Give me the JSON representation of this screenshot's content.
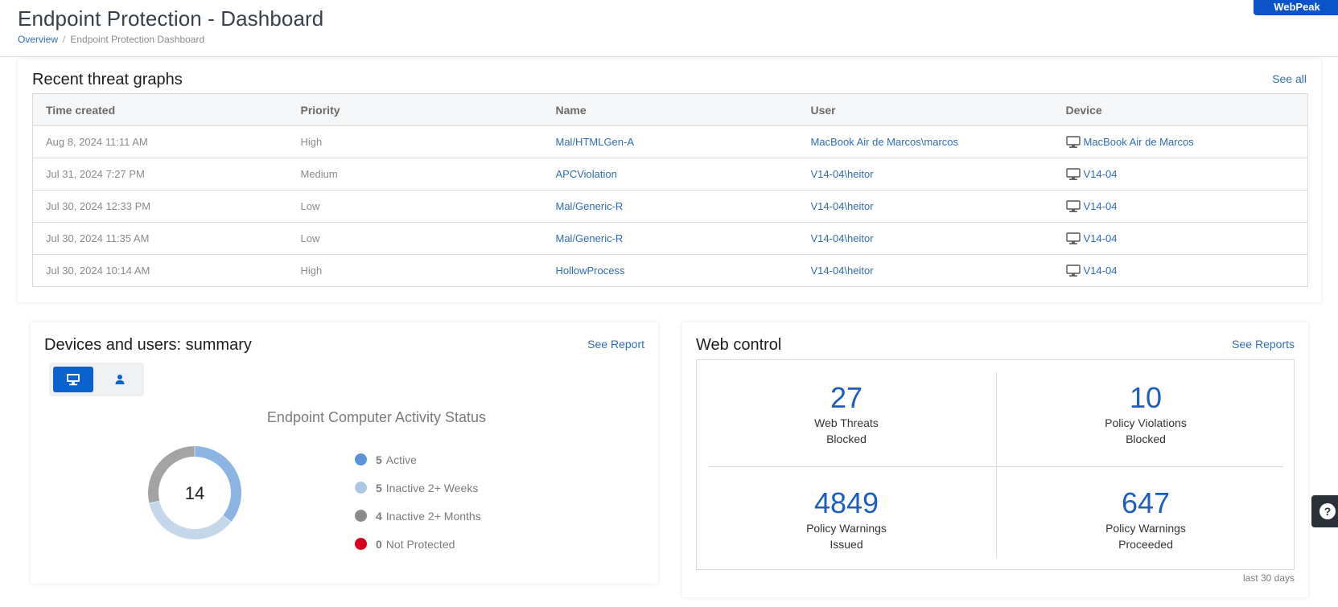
{
  "header": {
    "title": "Endpoint Protection - Dashboard",
    "breadcrumb": {
      "overview": "Overview",
      "separator": "/",
      "current": "Endpoint Protection Dashboard"
    },
    "brand": "WebPeak"
  },
  "threats": {
    "title": "Recent threat graphs",
    "see_all": "See all",
    "columns": [
      "Time created",
      "Priority",
      "Name",
      "User",
      "Device"
    ],
    "rows": [
      {
        "time": "Aug 8, 2024 11:11 AM",
        "priority": "High",
        "name": "Mal/HTMLGen-A",
        "user": "MacBook Air de Marcos\\marcos",
        "device": "MacBook Air de Marcos",
        "device_icon": "monitor-icon"
      },
      {
        "time": "Jul 31, 2024 7:27 PM",
        "priority": "Medium",
        "name": "APCViolation",
        "user": "V14-04\\heitor",
        "device": "V14-04",
        "device_icon": "monitor-icon"
      },
      {
        "time": "Jul 30, 2024 12:33 PM",
        "priority": "Low",
        "name": "Mal/Generic-R",
        "user": "V14-04\\heitor",
        "device": "V14-04",
        "device_icon": "monitor-icon"
      },
      {
        "time": "Jul 30, 2024 11:35 AM",
        "priority": "Low",
        "name": "Mal/Generic-R",
        "user": "V14-04\\heitor",
        "device": "V14-04",
        "device_icon": "monitor-icon"
      },
      {
        "time": "Jul 30, 2024 10:14 AM",
        "priority": "High",
        "name": "HollowProcess",
        "user": "V14-04\\heitor",
        "device": "V14-04",
        "device_icon": "monitor-icon"
      }
    ]
  },
  "devices": {
    "title": "Devices and users: summary",
    "see_report": "See Report",
    "toggle": {
      "computers_icon": "monitor-icon",
      "users_icon": "user-icon",
      "selected": "computers"
    },
    "chart_title": "Endpoint Computer Activity Status",
    "total": "14",
    "legend": [
      {
        "count": "5",
        "label": "Active",
        "color": "#5b93d6"
      },
      {
        "count": "5",
        "label": "Inactive 2+ Weeks",
        "color": "#a9c8e6"
      },
      {
        "count": "4",
        "label": "Inactive 2+ Months",
        "color": "#8a8a8a"
      },
      {
        "count": "0",
        "label": "Not Protected",
        "color": "#d6001c"
      }
    ]
  },
  "chart_data": {
    "type": "pie",
    "title": "Endpoint Computer Activity Status",
    "categories": [
      "Active",
      "Inactive 2+ Weeks",
      "Inactive 2+ Months",
      "Not Protected"
    ],
    "values": [
      5,
      5,
      4,
      0
    ],
    "colors": [
      "#8cb4e2",
      "#c4d8ec",
      "#a3a3a3",
      "#d6001c"
    ],
    "center_label": "14"
  },
  "web_control": {
    "title": "Web control",
    "see_reports": "See Reports",
    "stats": [
      {
        "value": "27",
        "line1": "Web Threats",
        "line2": "Blocked"
      },
      {
        "value": "10",
        "line1": "Policy Violations",
        "line2": "Blocked"
      },
      {
        "value": "4849",
        "line1": "Policy Warnings",
        "line2": "Issued"
      },
      {
        "value": "647",
        "line1": "Policy Warnings",
        "line2": "Proceeded"
      }
    ],
    "footnote": "last 30 days"
  },
  "help": {
    "label": "?"
  },
  "colors": {
    "accent": "#0a62cf",
    "link": "#2f6db5",
    "brand": "#0a53c9"
  }
}
